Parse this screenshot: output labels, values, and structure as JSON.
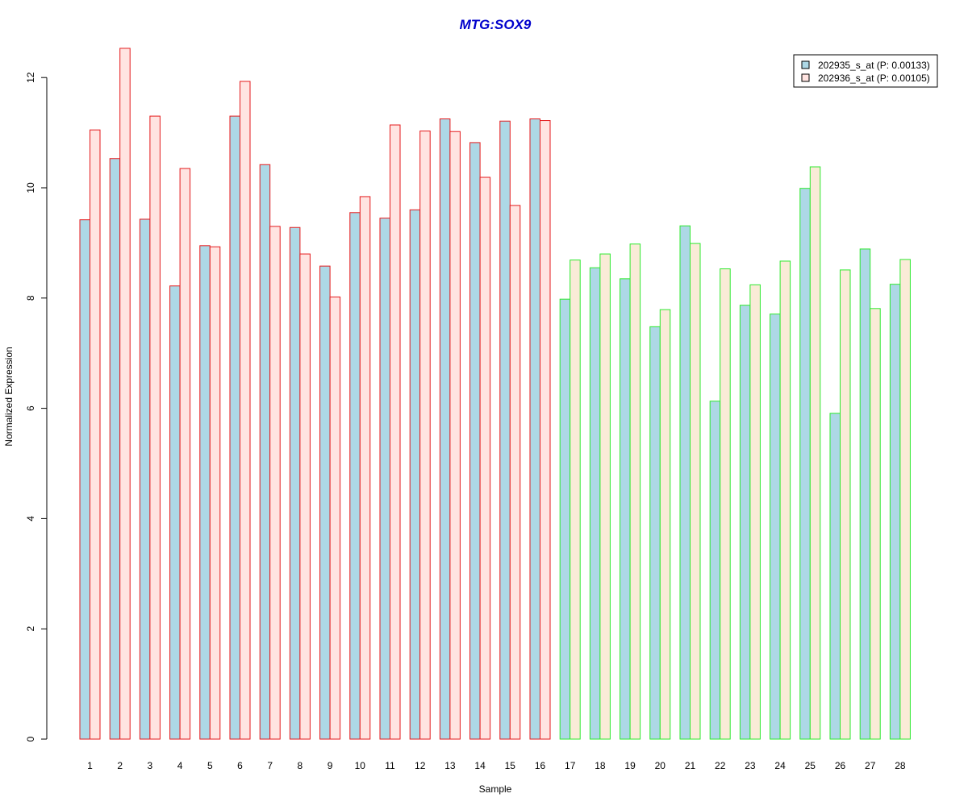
{
  "chart_data": {
    "type": "bar",
    "title": "MTG:SOX9",
    "xlabel": "Sample",
    "ylabel": "Normalized Expression",
    "ylim": [
      0,
      12.5
    ],
    "yticks": [
      0,
      2,
      4,
      6,
      8,
      10,
      12
    ],
    "categories": [
      "1",
      "2",
      "3",
      "4",
      "5",
      "6",
      "7",
      "8",
      "9",
      "10",
      "11",
      "12",
      "13",
      "14",
      "15",
      "16",
      "17",
      "18",
      "19",
      "20",
      "21",
      "22",
      "23",
      "24",
      "25",
      "26",
      "27",
      "28"
    ],
    "series": [
      {
        "name": "202935_s_at (P: 0.00133)",
        "values": [
          9.42,
          10.53,
          9.43,
          8.22,
          8.95,
          11.3,
          10.42,
          9.28,
          8.58,
          9.55,
          9.45,
          9.6,
          11.25,
          10.82,
          11.21,
          11.25,
          7.98,
          8.55,
          8.35,
          7.48,
          9.31,
          6.13,
          7.87,
          7.71,
          9.99,
          5.91,
          8.89,
          8.25
        ]
      },
      {
        "name": "202936_s_at (P: 0.00105)",
        "values": [
          11.05,
          12.53,
          11.3,
          10.35,
          8.93,
          11.93,
          9.3,
          8.8,
          8.02,
          9.84,
          11.14,
          11.03,
          11.02,
          10.19,
          9.68,
          11.22,
          8.69,
          8.8,
          8.98,
          7.79,
          8.99,
          8.53,
          8.24,
          8.67,
          10.38,
          8.51,
          7.81,
          8.7
        ]
      }
    ],
    "group_outline_colors": [
      "#e41a1c",
      "#e41a1c",
      "#e41a1c",
      "#e41a1c",
      "#e41a1c",
      "#e41a1c",
      "#e41a1c",
      "#e41a1c",
      "#e41a1c",
      "#e41a1c",
      "#e41a1c",
      "#e41a1c",
      "#e41a1c",
      "#e41a1c",
      "#e41a1c",
      "#e41a1c",
      "#2ee82e",
      "#2ee82e",
      "#2ee82e",
      "#2ee82e",
      "#2ee82e",
      "#2ee82e",
      "#2ee82e",
      "#2ee82e",
      "#2ee82e",
      "#2ee82e",
      "#2ee82e",
      "#2ee82e"
    ],
    "colors": {
      "title": "#0000cc",
      "series1_fill": "#add8e6",
      "series2_fill_red_group": "#ffe4e1",
      "series2_fill_green_group": "#faebd7",
      "axis": "#000000"
    },
    "legend_position": "top-right",
    "grid": false
  }
}
